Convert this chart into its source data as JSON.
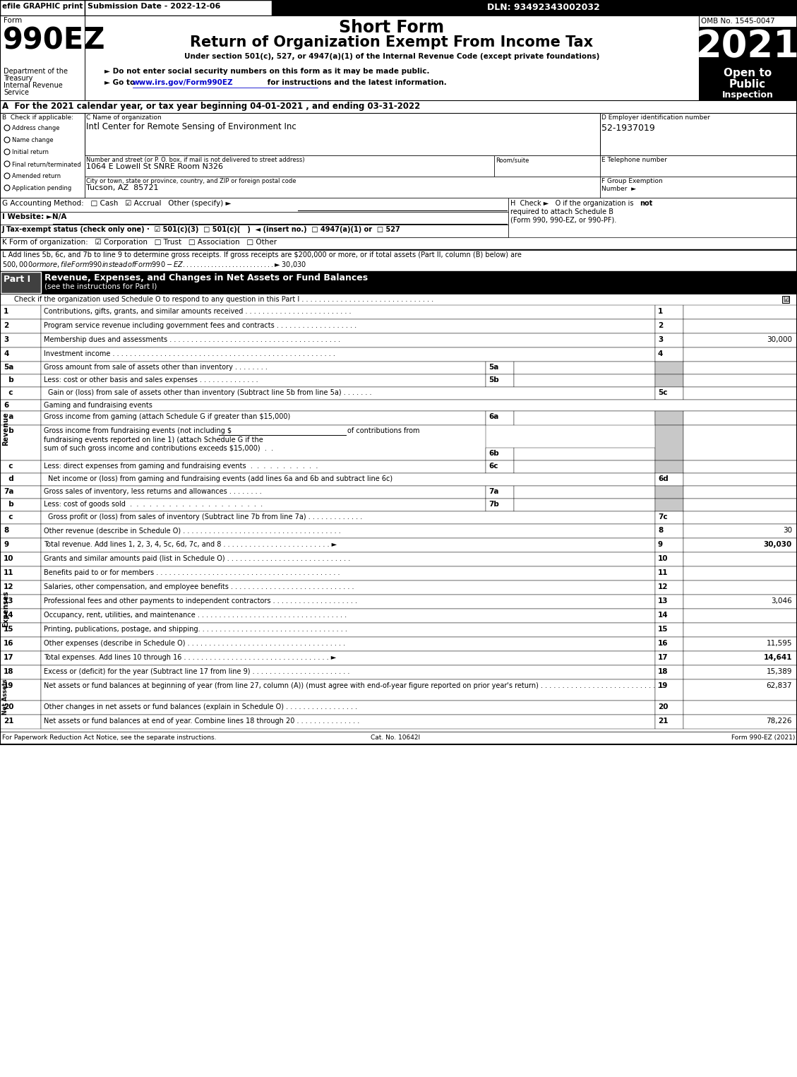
{
  "efile_text": "efile GRAPHIC print",
  "submission_date": "Submission Date - 2022-12-06",
  "dln": "DLN: 93492343002032",
  "form_label": "Form",
  "form_number": "990EZ",
  "short_form": "Short Form",
  "return_title": "Return of Organization Exempt From Income Tax",
  "under_section": "Under section 501(c), 527, or 4947(a)(1) of the Internal Revenue Code (except private foundations)",
  "dept1": "Department of the",
  "dept2": "Treasury",
  "dept3": "Internal Revenue",
  "dept4": "Service",
  "bullet1": "► Do not enter social security numbers on this form as it may be made public.",
  "www_text": "www.irs.gov/Form990EZ",
  "omb": "OMB No. 1545-0047",
  "year": "2021",
  "open_to": "Open to",
  "public": "Public",
  "inspection": "Inspection",
  "line_A": "A  For the 2021 calendar year, or tax year beginning 04-01-2021 , and ending 03-31-2022",
  "org_name": "Intl Center for Remote Sensing of Environment Inc",
  "ein": "52-1937019",
  "addr": "1064 E Lowell St SNRE Room N326",
  "city": "Tucson, AZ  85721",
  "checks_B": [
    "Address change",
    "Name change",
    "Initial return",
    "Final return/terminated",
    "Amended return",
    "Application pending"
  ],
  "footer_left": "For Paperwork Reduction Act Notice, see the separate instructions.",
  "footer_cat": "Cat. No. 10642I",
  "footer_right": "Form 990-EZ (2021)",
  "bg_color": "#ffffff",
  "light_gray": "#c8c8c8"
}
